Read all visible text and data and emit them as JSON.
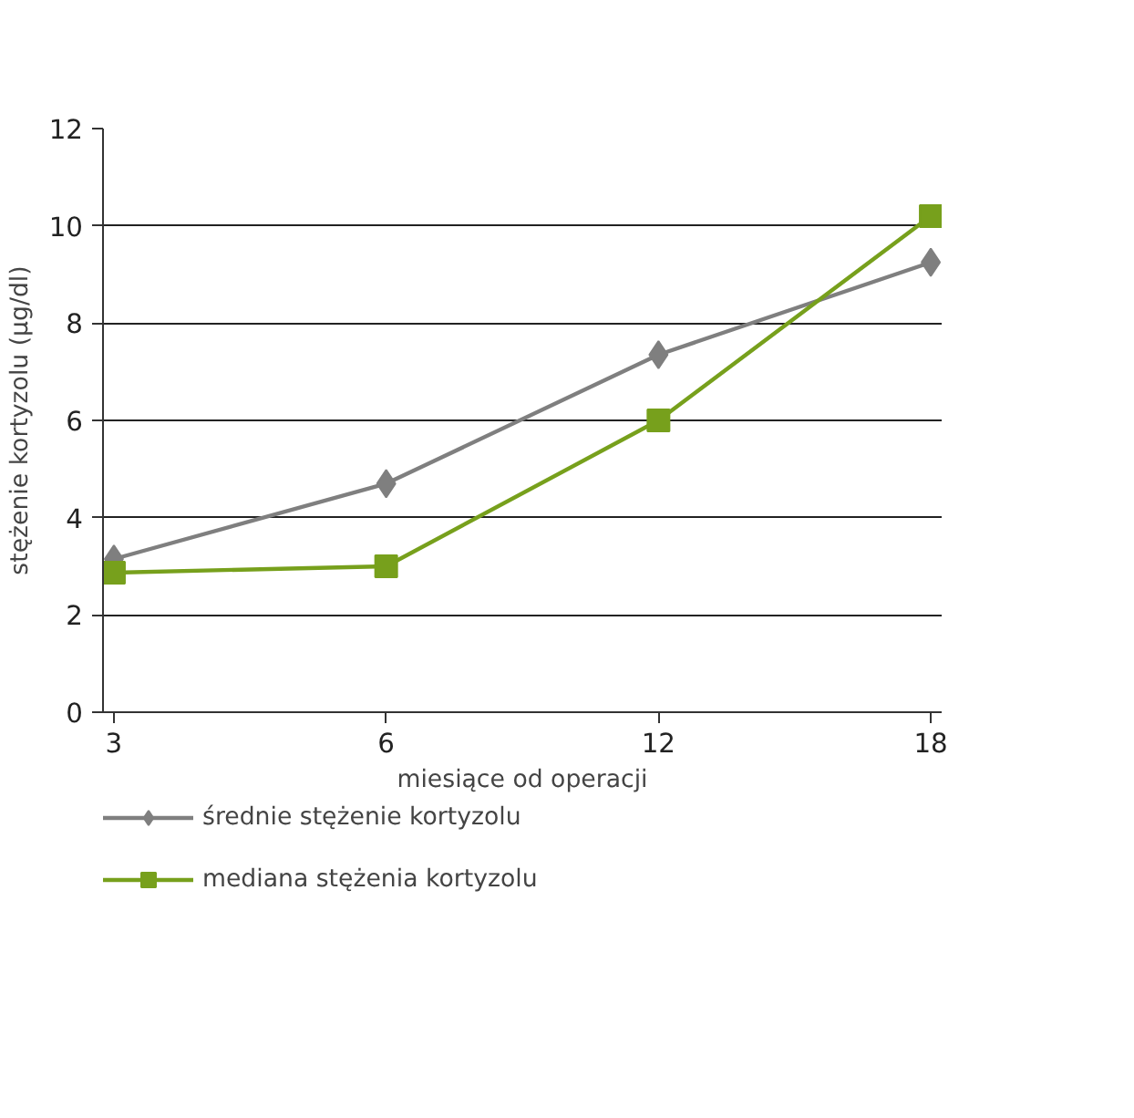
{
  "chart_data": {
    "type": "line",
    "xlabel": "miesiące od operacji",
    "ylabel": "stężenie kortyzolu (µg/dl)",
    "categories": [
      "3",
      "6",
      "12",
      "18"
    ],
    "series": [
      {
        "name": "średnie stężenie kortyzolu",
        "color": "#7f7f7f",
        "marker": "diamond",
        "values": [
          3.15,
          4.7,
          7.35,
          9.25
        ]
      },
      {
        "name": "mediana stężenia kortyzolu",
        "color": "#77a01c",
        "marker": "square",
        "values": [
          2.87,
          3.0,
          6.0,
          10.2
        ]
      }
    ],
    "ylim": [
      0,
      12
    ],
    "yticks": [
      0,
      2,
      4,
      6,
      8,
      10,
      12
    ],
    "grid": "y",
    "legend": "bottom",
    "line_style": "solid"
  }
}
